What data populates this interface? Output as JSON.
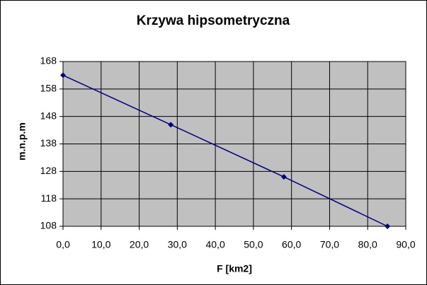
{
  "chart_data": {
    "type": "line",
    "title": "Krzywa hipsometryczna",
    "x_label": "F [km2]",
    "y_label": "m.n.p.m",
    "x": [
      0,
      28.3,
      58.0,
      85.2
    ],
    "values": [
      163,
      145,
      126,
      108
    ],
    "color": "#000080",
    "xlim": [
      0,
      90
    ],
    "xticks": [
      {
        "value": 0,
        "label": "0,0"
      },
      {
        "value": 10,
        "label": "10,0"
      },
      {
        "value": 20,
        "label": "20,0"
      },
      {
        "value": 30,
        "label": "30,0"
      },
      {
        "value": 40,
        "label": "40,0"
      },
      {
        "value": 50,
        "label": "50,0"
      },
      {
        "value": 60,
        "label": "60,0"
      },
      {
        "value": 70,
        "label": "70,0"
      },
      {
        "value": 80,
        "label": "80,0"
      },
      {
        "value": 90,
        "label": "90,0"
      }
    ],
    "ylim": [
      108,
      168
    ],
    "yticks": [
      108,
      118,
      128,
      138,
      148,
      158,
      168
    ],
    "grid": true
  }
}
